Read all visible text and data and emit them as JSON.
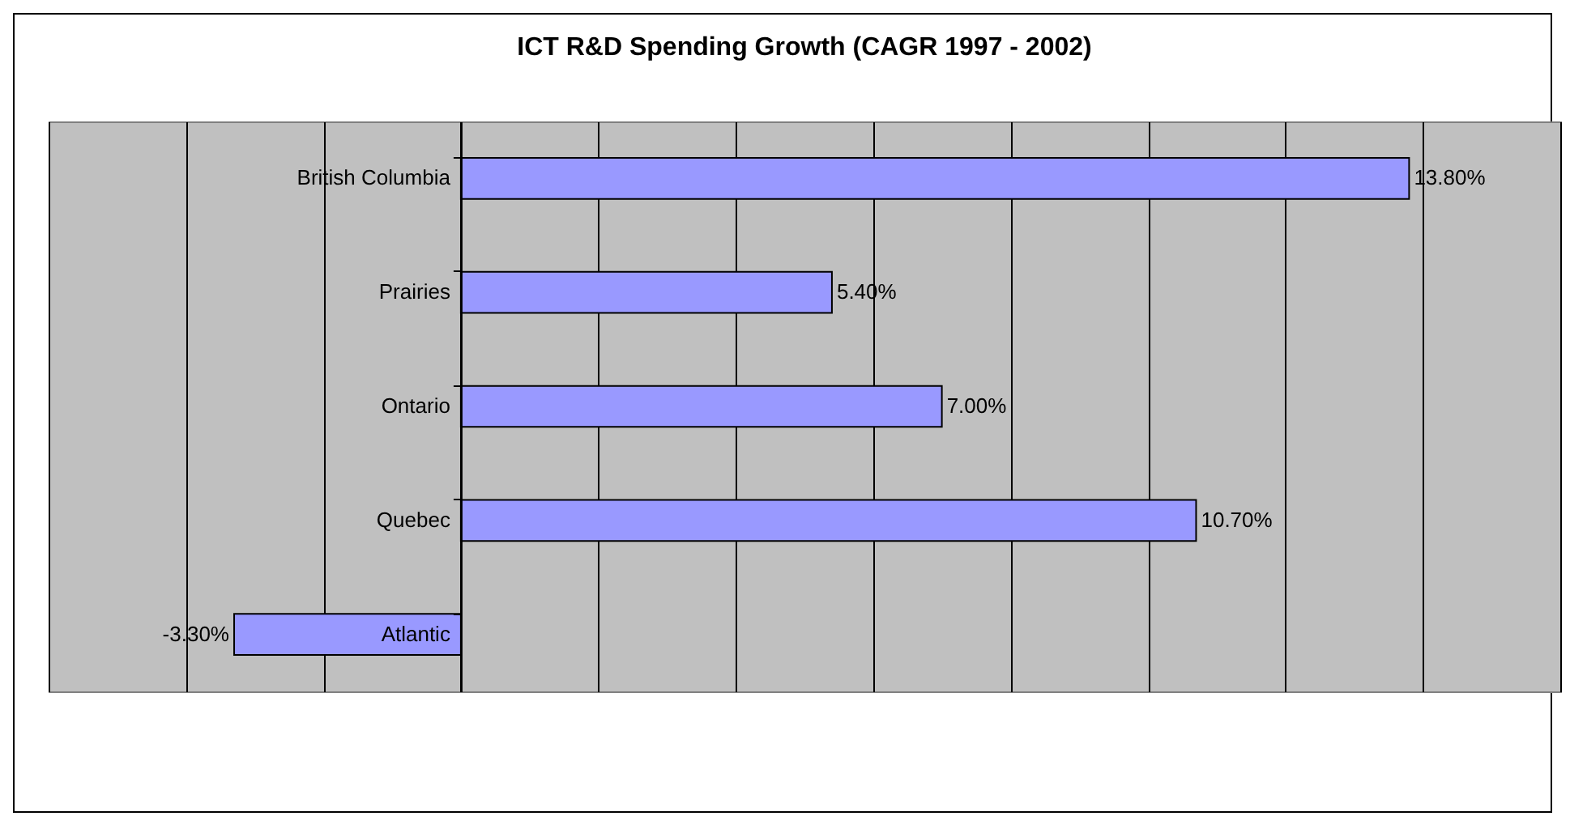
{
  "chart_data": {
    "type": "bar",
    "orientation": "horizontal",
    "title": "ICT R&D Spending Growth (CAGR 1997 - 2002)",
    "categories": [
      "British Columbia",
      "Prairies",
      "Ontario",
      "Quebec",
      "Atlantic"
    ],
    "series": [
      {
        "color": "#9999ff",
        "values": [
          13.8,
          5.4,
          7.0,
          10.7,
          -3.3
        ],
        "value_labels": [
          "13.80%",
          "5.40%",
          "7.00%",
          "10.70%",
          "-3.30%"
        ]
      }
    ],
    "xlim": [
      -6,
      16
    ],
    "xticks": [
      {
        "value": -6,
        "label": null
      },
      {
        "value": -4,
        "label": null
      },
      {
        "value": -2,
        "label": null
      },
      {
        "value": 0,
        "label": null
      },
      {
        "value": 2,
        "label": null
      },
      {
        "value": 4,
        "label": null
      },
      {
        "value": 6,
        "label": null
      },
      {
        "value": 8,
        "label": null
      },
      {
        "value": 10,
        "label": null
      },
      {
        "value": 12,
        "label": null
      },
      {
        "value": 14,
        "label": null
      },
      {
        "value": 16,
        "label": null
      }
    ],
    "grid": "x",
    "tick_labels": "y"
  }
}
